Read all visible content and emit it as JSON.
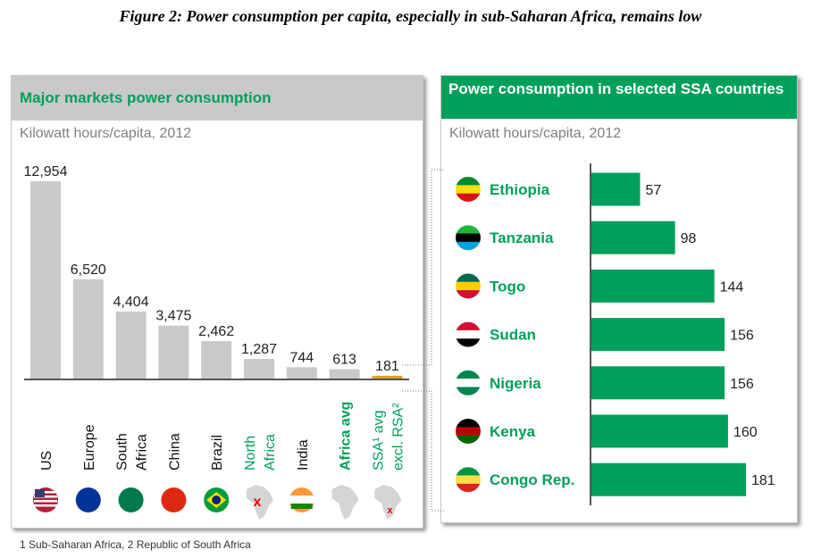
{
  "title": "Figure 2: Power consumption per capita, especially in sub-Saharan Africa, remains low",
  "footnote": "1 Sub-Saharan Africa, 2 Republic of South Africa",
  "chart_data": [
    {
      "type": "bar",
      "title": "Major markets power consumption",
      "subtitle": "Kilowatt hours/capita, 2012",
      "categories": [
        "US",
        "Europe",
        "South Africa",
        "China",
        "Brazil",
        "North Africa",
        "India",
        "Africa avg",
        "SSA¹ avg excl. RSA²"
      ],
      "label_lines": [
        [
          "US"
        ],
        [
          "Europe"
        ],
        [
          "South",
          "Africa"
        ],
        [
          "China"
        ],
        [
          "Brazil"
        ],
        [
          "North",
          "Africa"
        ],
        [
          "India"
        ],
        [
          "Africa avg"
        ],
        [
          "SSA¹ avg",
          "excl. RSA²"
        ]
      ],
      "values": [
        12954,
        6520,
        4404,
        3475,
        2462,
        1287,
        744,
        613,
        181
      ],
      "value_labels": [
        "12,954",
        "6,520",
        "4,404",
        "3,475",
        "2,462",
        "1,287",
        "744",
        "613",
        "181"
      ],
      "icons": [
        "us-flag",
        "eu-flag",
        "south-africa-flag",
        "china-flag",
        "brazil-flag",
        "africa-map-north",
        "india-flag",
        "africa-map",
        "africa-map-ssa"
      ],
      "highlight": [
        false,
        false,
        false,
        false,
        false,
        true,
        false,
        true,
        true
      ],
      "ylim": [
        0,
        12954
      ]
    },
    {
      "type": "bar",
      "orientation": "horizontal",
      "title": "Power consumption in selected SSA countries",
      "subtitle": "Kilowatt hours/capita, 2012",
      "categories": [
        "Ethiopia",
        "Tanzania",
        "Togo",
        "Sudan",
        "Nigeria",
        "Kenya",
        "Congo Rep."
      ],
      "values": [
        57,
        98,
        144,
        156,
        156,
        160,
        181
      ],
      "flag_colors": [
        [
          "#078930",
          "#fcdd09",
          "#da121a"
        ],
        [
          "#1eb53a",
          "#000000",
          "#00a3dd"
        ],
        [
          "#006a4e",
          "#ffce00",
          "#d21034"
        ],
        [
          "#d21034",
          "#ffffff",
          "#000000"
        ],
        [
          "#008751",
          "#ffffff",
          "#008751"
        ],
        [
          "#000000",
          "#bb0000",
          "#006600"
        ],
        [
          "#009543",
          "#fbde4a",
          "#dc241f"
        ]
      ],
      "xlim": [
        0,
        181
      ]
    }
  ],
  "colors": {
    "green": "#00a05a",
    "gray": "#c9c9c9",
    "orange": "#e0a030"
  }
}
